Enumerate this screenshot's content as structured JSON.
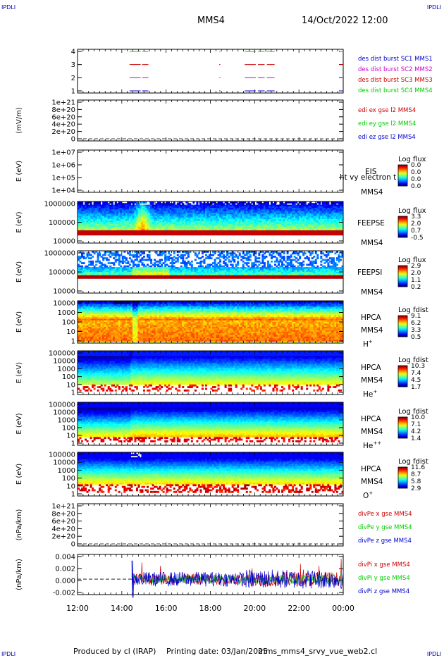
{
  "header": {
    "corner_tl": "IPDLI",
    "corner_tr": "IPDLI",
    "corner_bl": "IPDLI",
    "corner_br": "IPDLI",
    "spacecraft": "MMS4",
    "datetime": "14/Oct/2022 12:00"
  },
  "footer": {
    "produced": "Produced by cl (IRAP)",
    "printing": "Printing date: 03/Jan/2025",
    "file": "mms_mms4_srvy_vue_web2.cl"
  },
  "colors": {
    "red": "#cc0000",
    "green": "#00cc00",
    "blue": "#0000cc",
    "magenta": "#cc00cc"
  },
  "chart_data": {
    "type": "multi-panel-timeseries",
    "x_ticks": [
      "12:00",
      "14:00",
      "16:00",
      "18:00",
      "20:00",
      "22:00",
      "00:00"
    ],
    "x_range_hours": [
      12,
      24
    ],
    "panels": [
      {
        "id": "burst",
        "type": "line",
        "ylabel": "",
        "yticks": [
          "4",
          "3",
          "2",
          "1"
        ],
        "legend": [
          {
            "text": "des dist burst SC1 MMS1",
            "color": "#0000cc"
          },
          {
            "text": "des dist burst SC2 MMS2",
            "color": "#cc00cc"
          },
          {
            "text": "des dist burst SC3 MMS3",
            "color": "#cc0000"
          },
          {
            "text": "des dist burst SC4 MMS4",
            "color": "#00cc00"
          }
        ],
        "series": [
          {
            "level": 4,
            "color": "#00cc00",
            "segments": [
              [
                14.35,
                14.85
              ],
              [
                14.92,
                15.2
              ],
              [
                18.4,
                18.45
              ],
              [
                19.55,
                20.05
              ],
              [
                20.15,
                20.45
              ],
              [
                20.55,
                20.9
              ],
              [
                23.85,
                24.0
              ]
            ]
          },
          {
            "level": 3,
            "color": "#cc0000",
            "segments": [
              [
                14.35,
                14.85
              ],
              [
                14.92,
                15.2
              ],
              [
                18.4,
                18.45
              ],
              [
                19.55,
                20.05
              ],
              [
                20.15,
                20.45
              ],
              [
                20.55,
                20.9
              ],
              [
                23.85,
                24.0
              ]
            ]
          },
          {
            "level": 2,
            "color": "#cc00cc",
            "segments": [
              [
                14.35,
                14.85
              ],
              [
                14.92,
                15.2
              ],
              [
                18.4,
                18.45
              ],
              [
                19.55,
                20.05
              ],
              [
                20.15,
                20.45
              ],
              [
                20.55,
                20.9
              ],
              [
                23.85,
                24.0
              ]
            ]
          },
          {
            "level": 1,
            "color": "#0000cc",
            "segments": [
              [
                14.35,
                14.85
              ],
              [
                14.92,
                15.2
              ],
              [
                18.4,
                18.45
              ],
              [
                19.55,
                20.05
              ],
              [
                20.15,
                20.45
              ],
              [
                20.55,
                20.9
              ],
              [
                23.85,
                24.0
              ]
            ]
          }
        ]
      },
      {
        "id": "edi",
        "type": "line",
        "ylabel": "(mV/m)",
        "yticks": [
          "1e+21",
          "8e+20",
          "6e+20",
          "4e+20",
          "2e+20",
          "0"
        ],
        "legend": [
          {
            "text": "edi ex gse l2 MMS4",
            "color": "#cc0000"
          },
          {
            "text": "edi ey gse l2 MMS4",
            "color": "#00cc00"
          },
          {
            "text": "edi ez gse l2 MMS4",
            "color": "#0000cc"
          }
        ]
      },
      {
        "id": "eis",
        "type": "heatmap",
        "ylabel": "E (eV)",
        "yticks": [
          "1e+07",
          "1e+06",
          "1e+05",
          "1e+04"
        ],
        "labels": [
          "EIS",
          "ht vy electron t",
          "MMS4"
        ],
        "cbar_title": "Log flux",
        "cbar_ticks": [
          "0.0",
          "0.0",
          "0.0",
          "0.0"
        ]
      },
      {
        "id": "feepse",
        "type": "heatmap",
        "ylabel": "E (eV)",
        "yticks": [
          "1000000",
          "100000",
          "10000"
        ],
        "labels": [
          "FEEPSE",
          "MMS4"
        ],
        "cbar_title": "Log flux",
        "cbar_ticks": [
          "3.3",
          "2.0",
          "0.7",
          "-0.5"
        ]
      },
      {
        "id": "feepsi",
        "type": "heatmap",
        "ylabel": "E (eV)",
        "yticks": [
          "1000000",
          "100000",
          "10000"
        ],
        "labels": [
          "FEEPSI",
          "MMS4"
        ],
        "cbar_title": "Log flux",
        "cbar_ticks": [
          "2.9",
          "2.0",
          "1.1",
          "0.2"
        ]
      },
      {
        "id": "hpca_h",
        "type": "heatmap",
        "ylabel": "E (eV)",
        "yticks": [
          "10000",
          "1000",
          "100",
          "10",
          "1"
        ],
        "labels": [
          "HPCA",
          "MMS4"
        ],
        "species_base": "H",
        "species_sup": "+",
        "cbar_title": "Log fdist",
        "cbar_ticks": [
          "9.1",
          "6.2",
          "3.3",
          "0.5"
        ]
      },
      {
        "id": "hpca_he",
        "type": "heatmap",
        "ylabel": "E (eV)",
        "yticks": [
          "100000",
          "10000",
          "1000",
          "100",
          "10",
          "1"
        ],
        "labels": [
          "HPCA",
          "MMS4"
        ],
        "species_base": "He",
        "species_sup": "+",
        "cbar_title": "Log fdist",
        "cbar_ticks": [
          "10.3",
          "7.4",
          "4.5",
          "1.7"
        ]
      },
      {
        "id": "hpca_hepp",
        "type": "heatmap",
        "ylabel": "E (eV)",
        "yticks": [
          "100000",
          "10000",
          "1000",
          "100",
          "10",
          "1"
        ],
        "labels": [
          "HPCA",
          "MMS4"
        ],
        "species_base": "He",
        "species_sup": "++",
        "cbar_title": "Log fdist",
        "cbar_ticks": [
          "10.0",
          "7.1",
          "4.2",
          "1.4"
        ]
      },
      {
        "id": "hpca_o",
        "type": "heatmap",
        "ylabel": "E (eV)",
        "yticks": [
          "100000",
          "10000",
          "1000",
          "100",
          "10",
          "1"
        ],
        "labels": [
          "HPCA",
          "MMS4"
        ],
        "species_base": "O",
        "species_sup": "+",
        "cbar_title": "Log fdist",
        "cbar_ticks": [
          "11.6",
          "8.7",
          "5.8",
          "2.9"
        ]
      },
      {
        "id": "divpe",
        "type": "line",
        "ylabel": "(nPa/km)",
        "yticks": [
          "1e+21",
          "8e+20",
          "6e+20",
          "4e+20",
          "2e+20",
          "0"
        ],
        "legend": [
          {
            "text": "divPe x gse MMS4",
            "color": "#cc0000"
          },
          {
            "text": "divPe y gse MMS4",
            "color": "#00cc00"
          },
          {
            "text": "divPe z gse MMS4",
            "color": "#0000cc"
          }
        ]
      },
      {
        "id": "divpi",
        "type": "line",
        "ylabel": "(nPa/km)",
        "yticks": [
          "0.004",
          "0.002",
          "0.000",
          "-0.002"
        ],
        "ylim": [
          -0.0025,
          0.004
        ],
        "legend": [
          {
            "text": "divPi x gse MMS4",
            "color": "#cc0000"
          },
          {
            "text": "divPi y gse MMS4",
            "color": "#00cc00"
          },
          {
            "text": "divPi z gse MMS4",
            "color": "#0000cc"
          }
        ],
        "data_start_hour": 14.45
      }
    ]
  }
}
